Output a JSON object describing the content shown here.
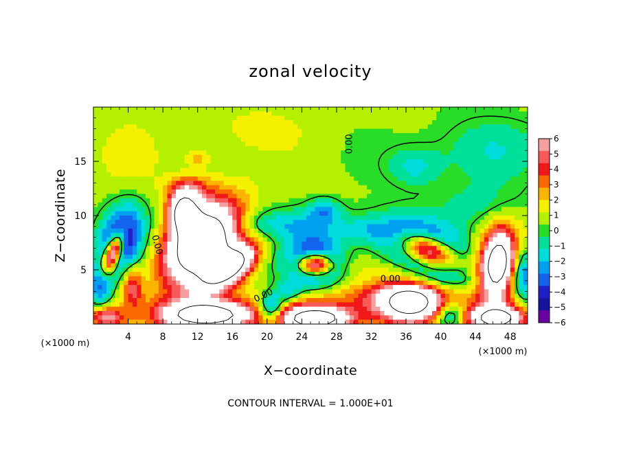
{
  "chart_data": {
    "type": "heatmap",
    "title": "zonal velocity",
    "xlabel": "X−coordinate",
    "ylabel": "Z−coordinate",
    "x_unit_left": "(×1000 m)",
    "x_unit_right": "(×1000 m)",
    "xlim": [
      0,
      50
    ],
    "ylim": [
      0,
      20
    ],
    "x_ticks": [
      4,
      8,
      12,
      16,
      20,
      24,
      28,
      32,
      36,
      40,
      44,
      48
    ],
    "y_ticks": [
      5,
      10,
      15
    ],
    "grid": false,
    "contour_interval_text": "CONTOUR INTERVAL = 1.000E+01",
    "contour_labels": [
      {
        "text": "0.00",
        "x": 29.5,
        "y": 16.6,
        "angle": -90
      },
      {
        "text": "0.00",
        "x": 7.3,
        "y": 7.3,
        "angle": 75
      },
      {
        "text": "0.00",
        "x": 34.2,
        "y": 4.1,
        "angle": 0
      },
      {
        "text": "0.00",
        "x": 19.6,
        "y": 2.6,
        "angle": -25
      }
    ],
    "colorbar": {
      "ticks": [
        "6",
        "5",
        "4",
        "3",
        "2",
        "1",
        "0",
        "−1",
        "−2",
        "−3",
        "−4",
        "−5",
        "−6"
      ],
      "range": [
        -6,
        6
      ],
      "colors": [
        "#f4a0a0",
        "#f85a5a",
        "#f01818",
        "#fa6a00",
        "#fbb400",
        "#f4f000",
        "#b4f000",
        "#28dc28",
        "#00e09a",
        "#00dcdc",
        "#00a0f0",
        "#1464ee",
        "#2020c8",
        "#1414a0",
        "#6a00a0"
      ]
    },
    "background_value": 0.6,
    "features": [
      {
        "x": 12.5,
        "y": 7.5,
        "rx": 4.0,
        "ry": 2.5,
        "value": 12,
        "rot": 36
      },
      {
        "x": 15.5,
        "y": 5.2,
        "rx": 3.2,
        "ry": 1.4,
        "value": 12,
        "rot": 25
      },
      {
        "x": 10.5,
        "y": 10.2,
        "rx": 1.6,
        "ry": 1.8,
        "value": 12,
        "rot": 20
      },
      {
        "x": 12.5,
        "y": 7.5,
        "rx": 5.4,
        "ry": 4.0,
        "value": 4,
        "rot": 36
      },
      {
        "x": 11.0,
        "y": 12.5,
        "rx": 2.4,
        "ry": 1.2,
        "value": 3,
        "rot": 0
      },
      {
        "x": 12.0,
        "y": 15.3,
        "rx": 1.4,
        "ry": 0.8,
        "value": 1.8,
        "rot": 0
      },
      {
        "x": 2.3,
        "y": 6.6,
        "rx": 0.9,
        "ry": 2.0,
        "value": 10,
        "rot": -28
      },
      {
        "x": 3.2,
        "y": 7.8,
        "rx": 2.3,
        "ry": 3.2,
        "value": -6,
        "rot": -28
      },
      {
        "x": 4.5,
        "y": 3.4,
        "rx": 1.1,
        "ry": 1.8,
        "value": 4,
        "rot": 0
      },
      {
        "x": 0.8,
        "y": 3.5,
        "rx": 1.2,
        "ry": 2.0,
        "value": -3.5,
        "rot": 0
      },
      {
        "x": 25.5,
        "y": 5.5,
        "rx": 1.9,
        "ry": 1.0,
        "value": 10,
        "rot": 0
      },
      {
        "x": 25.5,
        "y": 5.7,
        "rx": 3.1,
        "ry": 2.3,
        "value": -6,
        "rot": 0
      },
      {
        "x": 38.5,
        "y": 6.8,
        "rx": 3.2,
        "ry": 1.3,
        "value": 10,
        "rot": -15
      },
      {
        "x": 38.0,
        "y": 7.0,
        "rx": 5.0,
        "ry": 2.5,
        "value": -6,
        "rot": -15
      },
      {
        "x": 46.5,
        "y": 5.5,
        "rx": 1.5,
        "ry": 2.6,
        "value": 10,
        "rot": -10
      },
      {
        "x": 46.5,
        "y": 5.5,
        "rx": 2.7,
        "ry": 4.0,
        "value": 4,
        "rot": -10
      },
      {
        "x": 49.5,
        "y": 4.5,
        "rx": 1.3,
        "ry": 2.5,
        "value": -4,
        "rot": 0
      },
      {
        "x": 13.0,
        "y": 0.8,
        "rx": 4.5,
        "ry": 1.1,
        "value": 10,
        "rot": 0
      },
      {
        "x": 13.0,
        "y": 1.1,
        "rx": 6.5,
        "ry": 1.9,
        "value": 4,
        "rot": 0
      },
      {
        "x": 25.5,
        "y": 0.5,
        "rx": 3.2,
        "ry": 0.9,
        "value": 10,
        "rot": 0
      },
      {
        "x": 25.5,
        "y": 0.8,
        "rx": 5.0,
        "ry": 1.8,
        "value": 4,
        "rot": 0
      },
      {
        "x": 36.5,
        "y": 2.0,
        "rx": 3.2,
        "ry": 1.6,
        "value": 10,
        "rot": 0
      },
      {
        "x": 35.0,
        "y": 2.5,
        "rx": 6.5,
        "ry": 2.6,
        "value": 4,
        "rot": 0
      },
      {
        "x": 46.5,
        "y": 0.5,
        "rx": 2.6,
        "ry": 0.9,
        "value": 9,
        "rot": 0
      },
      {
        "x": 46.5,
        "y": 0.8,
        "rx": 4.0,
        "ry": 1.6,
        "value": 4,
        "rot": 0
      },
      {
        "x": 1.5,
        "y": 0.6,
        "rx": 2.0,
        "ry": 1.0,
        "value": 5,
        "rot": 0
      },
      {
        "x": 20.5,
        "y": 1.5,
        "rx": 1.5,
        "ry": 1.4,
        "value": -5,
        "rot": 0
      },
      {
        "x": 41.0,
        "y": 0.8,
        "rx": 1.7,
        "ry": 1.2,
        "value": -4,
        "rot": 0
      },
      {
        "x": 22.5,
        "y": 3.0,
        "rx": 1.4,
        "ry": 1.0,
        "value": -2.5,
        "rot": 0
      },
      {
        "x": 22.0,
        "y": 9.2,
        "rx": 9.0,
        "ry": 1.4,
        "value": -2.2,
        "rot": 0
      },
      {
        "x": 26.5,
        "y": 10.5,
        "rx": 1.8,
        "ry": 1.0,
        "value": -2.6,
        "rot": 0
      },
      {
        "x": 32.0,
        "y": 8.5,
        "rx": 3.5,
        "ry": 1.2,
        "value": -1.5,
        "rot": 0
      },
      {
        "x": 37.0,
        "y": 14.5,
        "rx": 3.0,
        "ry": 1.8,
        "value": -2.0,
        "rot": 0
      },
      {
        "x": 45.0,
        "y": 16.0,
        "rx": 6.0,
        "ry": 3.0,
        "value": -1.8,
        "rot": 0
      },
      {
        "x": 45.0,
        "y": 11.0,
        "rx": 5.0,
        "ry": 2.0,
        "value": -1.4,
        "rot": 0
      },
      {
        "x": 38.0,
        "y": 4.0,
        "rx": 8.0,
        "ry": 0.9,
        "value": -1.5,
        "rot": 0
      },
      {
        "x": 4.0,
        "y": 15.5,
        "rx": 4.0,
        "ry": 3.5,
        "value": 0.8,
        "rot": 0
      },
      {
        "x": 19.0,
        "y": 18.0,
        "rx": 5.0,
        "ry": 2.0,
        "value": 1.0,
        "rot": 0
      },
      {
        "x": 20.0,
        "y": 6.0,
        "rx": 2.0,
        "ry": 1.6,
        "value": -0.4,
        "rot": 0
      }
    ]
  }
}
